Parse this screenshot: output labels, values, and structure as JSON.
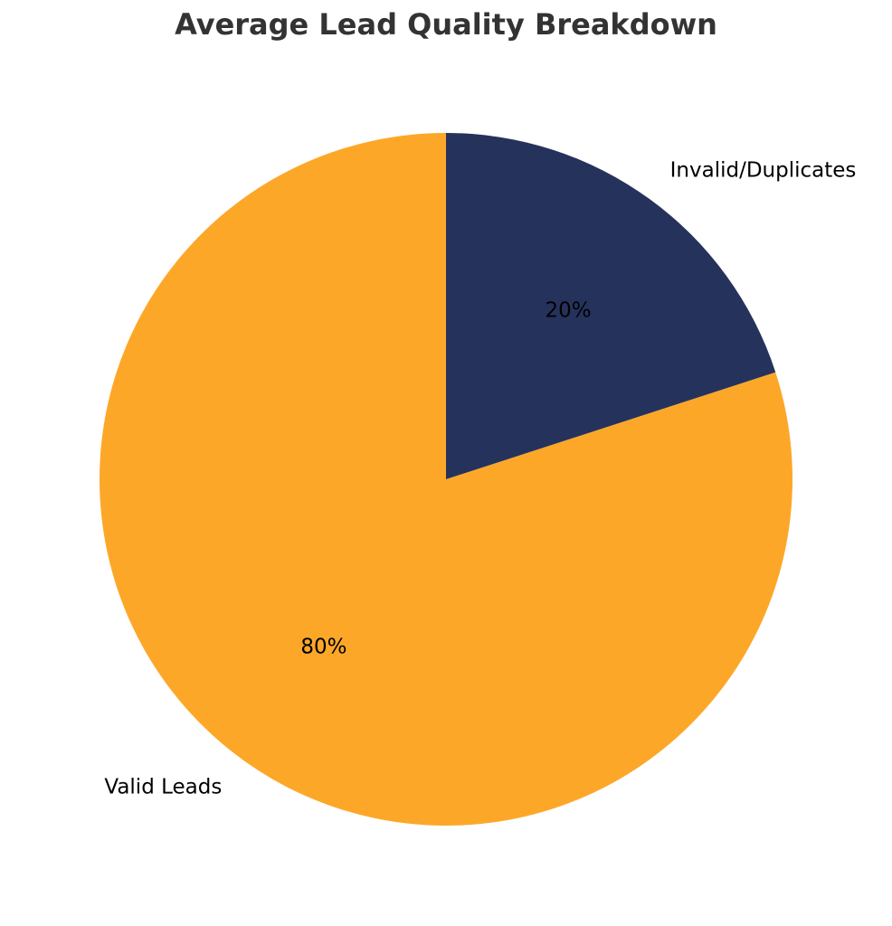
{
  "chart_data": {
    "type": "pie",
    "title": "Average Lead Quality Breakdown",
    "categories": [
      "Valid Leads",
      "Invalid/Duplicates"
    ],
    "values": [
      80,
      20
    ],
    "value_labels": [
      "80%",
      "20%"
    ],
    "colors": [
      "#fda729",
      "#25325c"
    ]
  }
}
